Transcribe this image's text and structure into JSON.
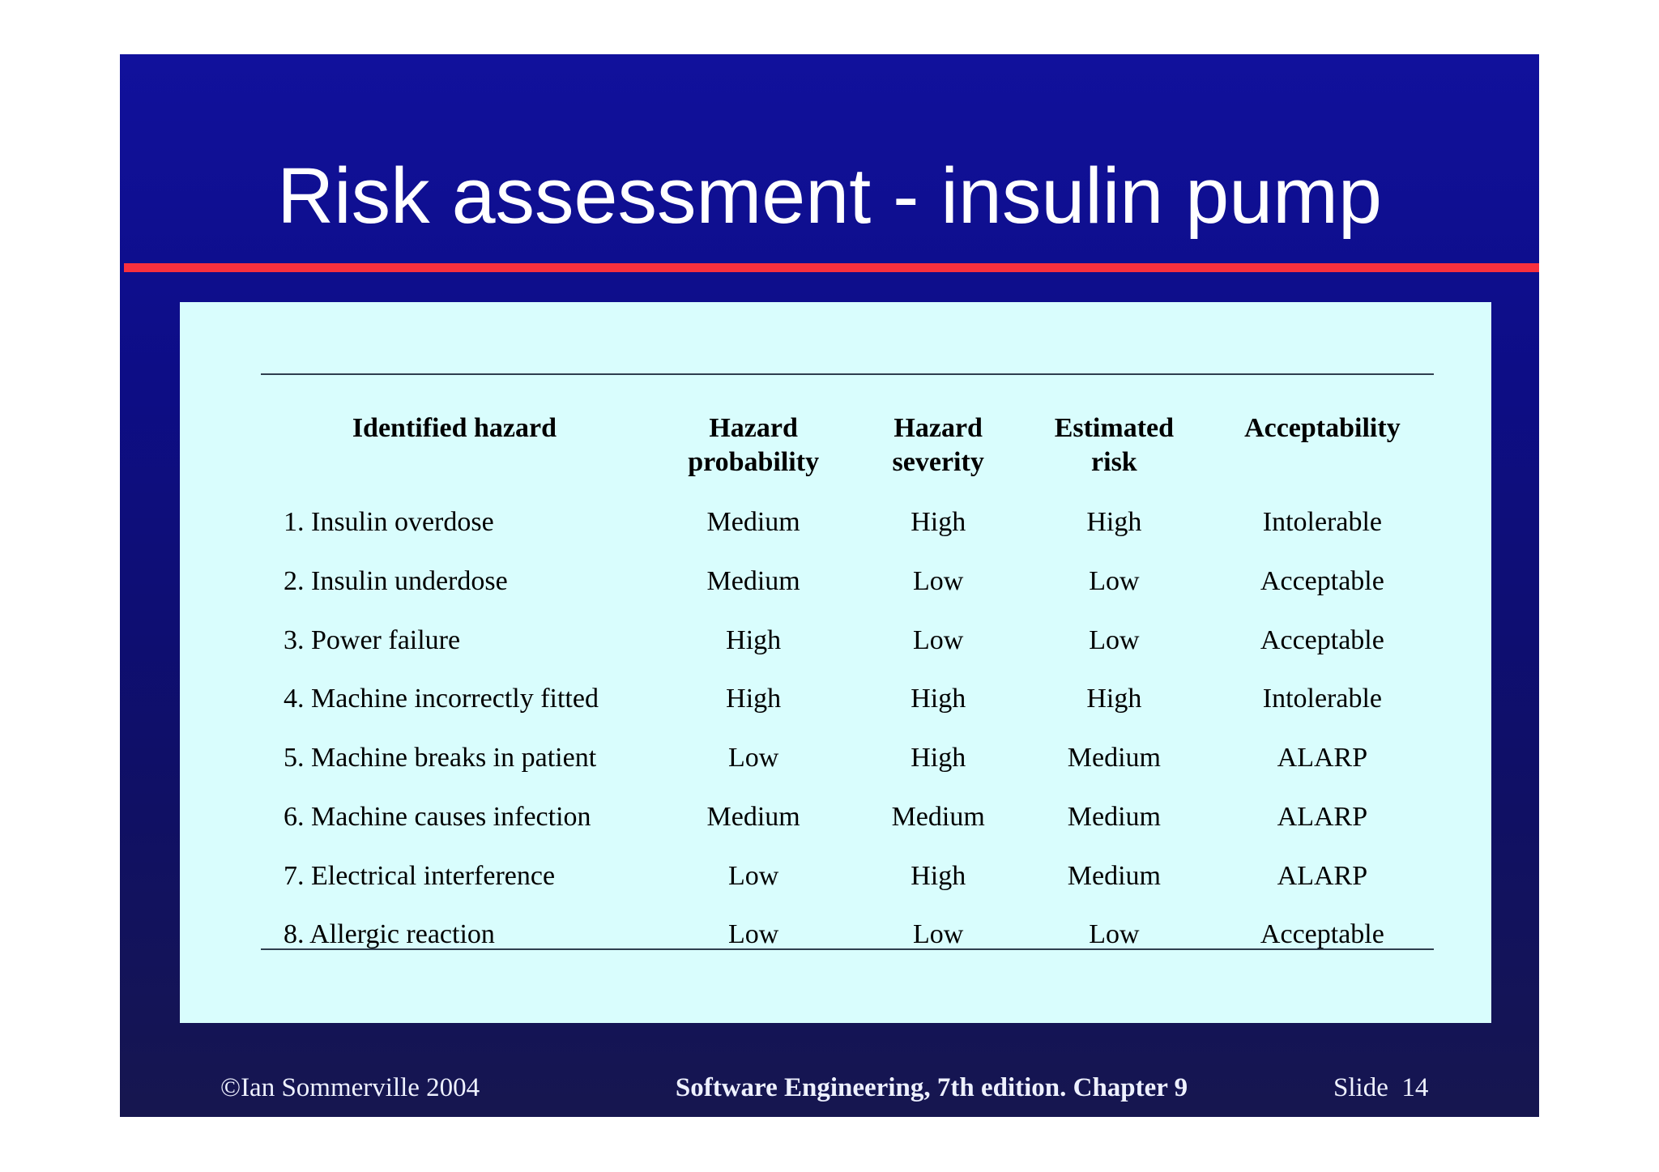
{
  "slide": {
    "title": "Risk assessment - insulin pump",
    "colors": {
      "bg_top": "#11119c",
      "bg_mid": "#0d0d86",
      "bg_low": "#0f0f68",
      "bg_bottom": "#16164f",
      "accent_red": "#f8303e",
      "panel_bg": "#d9fdfd",
      "rule": "#2f3e4e",
      "table_text": "#000000",
      "title_text": "#ffffff",
      "footer_text": "#eef1ff",
      "page_bg": "#ffffff"
    }
  },
  "table": {
    "headers": [
      {
        "line1": "Identified hazard",
        "line2": ""
      },
      {
        "line1": "Hazard",
        "line2": "probability"
      },
      {
        "line1": "Hazard",
        "line2": "severity"
      },
      {
        "line1": "Estimated",
        "line2": "risk"
      },
      {
        "line1": "Acceptability",
        "line2": ""
      }
    ],
    "rows": [
      [
        "1. Insulin overdose",
        "Medium",
        "High",
        "High",
        "Intolerable"
      ],
      [
        "2. Insulin underdose",
        "Medium",
        "Low",
        "Low",
        "Acceptable"
      ],
      [
        "3. Power failure",
        "High",
        "Low",
        "Low",
        "Acceptable"
      ],
      [
        "4. Machine incorrectly fitted",
        "High",
        "High",
        "High",
        "Intolerable"
      ],
      [
        "5. Machine breaks in patient",
        "Low",
        "High",
        "Medium",
        "ALARP"
      ],
      [
        "6. Machine causes infection",
        "Medium",
        "Medium",
        "Medium",
        "ALARP"
      ],
      [
        "7. Electrical interference",
        "Low",
        "High",
        "Medium",
        "ALARP"
      ],
      [
        "8. Allergic reaction",
        "Low",
        "Low",
        "Low",
        "Acceptable"
      ]
    ]
  },
  "footer": {
    "copyright": "©Ian Sommerville 2004",
    "book": "Software Engineering, 7th edition. Chapter 9",
    "slide_label": "Slide  14"
  }
}
